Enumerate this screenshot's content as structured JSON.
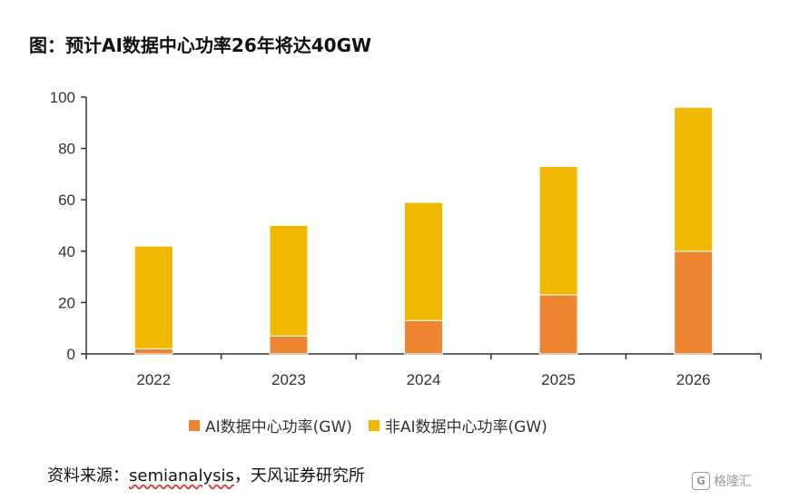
{
  "title": "图：预计AI数据中心功率26年将达40GW",
  "chart_data": {
    "type": "bar",
    "stacked": true,
    "categories": [
      "2022",
      "2023",
      "2024",
      "2025",
      "2026"
    ],
    "series": [
      {
        "name": "AI数据中心功率(GW)",
        "color": "#ED8532",
        "values": [
          2,
          7,
          13,
          23,
          40
        ]
      },
      {
        "name": "非AI数据中心功率(GW)",
        "color": "#F0B800",
        "values": [
          40,
          43,
          46,
          50,
          56
        ]
      }
    ],
    "ylim": [
      0,
      100
    ],
    "yticks": [
      0,
      20,
      40,
      60,
      80,
      100
    ],
    "xlabel": "",
    "ylabel": "",
    "grid": false,
    "legend_position": "bottom"
  },
  "legend": {
    "items": [
      {
        "label": "AI数据中心功率(GW)",
        "color": "#ED8532"
      },
      {
        "label": "非AI数据中心功率(GW)",
        "color": "#F0B800"
      }
    ]
  },
  "source": {
    "prefix": "资料来源：",
    "name": "semianalysis",
    "suffix": "，天风证券研究所"
  },
  "watermark": {
    "logo": "G",
    "text": "格隆汇"
  }
}
